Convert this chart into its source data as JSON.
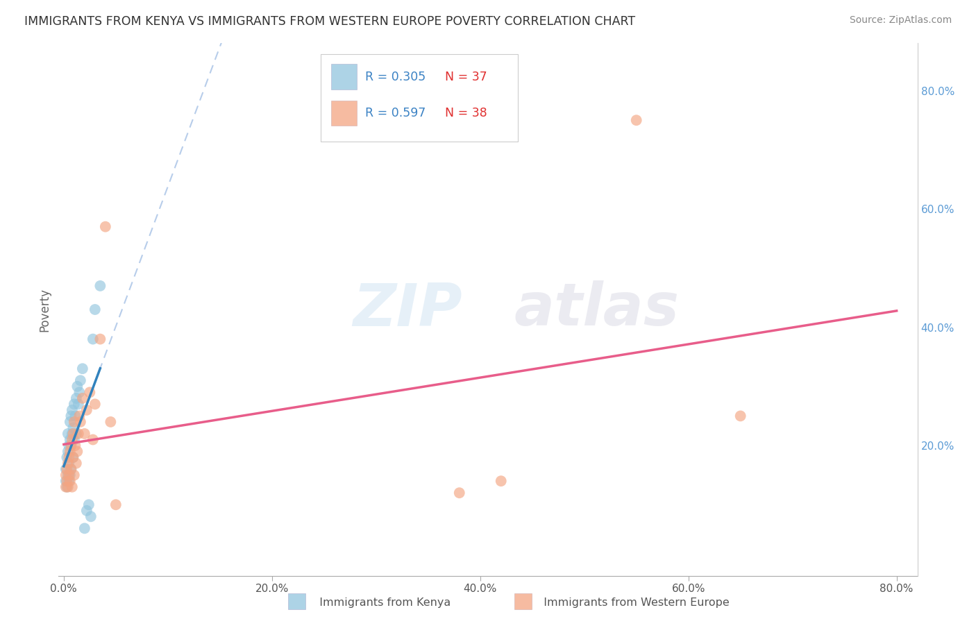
{
  "title": "IMMIGRANTS FROM KENYA VS IMMIGRANTS FROM WESTERN EUROPE POVERTY CORRELATION CHART",
  "source": "Source: ZipAtlas.com",
  "ylabel": "Poverty",
  "xlim": [
    -0.005,
    0.82
  ],
  "ylim": [
    -0.02,
    0.88
  ],
  "xtick_vals": [
    0.0,
    0.2,
    0.4,
    0.6,
    0.8
  ],
  "xtick_labels": [
    "0.0%",
    "20.0%",
    "40.0%",
    "60.0%",
    "80.0%"
  ],
  "ytick_vals": [
    0.2,
    0.4,
    0.6,
    0.8
  ],
  "ytick_labels": [
    "20.0%",
    "40.0%",
    "60.0%",
    "80.0%"
  ],
  "legend_r1": "R = 0.305",
  "legend_n1": "N = 37",
  "legend_r2": "R = 0.597",
  "legend_n2": "N = 38",
  "color_kenya": "#92c5de",
  "color_europe": "#f4a582",
  "trendline_kenya_color": "#3182bd",
  "trendline_europe_color": "#e85d8a",
  "trendline_dashed_color": "#b0c8e8",
  "watermark": "ZIPatlas",
  "kenya_x": [
    0.002,
    0.002,
    0.003,
    0.003,
    0.004,
    0.004,
    0.004,
    0.005,
    0.005,
    0.005,
    0.006,
    0.006,
    0.006,
    0.007,
    0.007,
    0.007,
    0.008,
    0.008,
    0.009,
    0.009,
    0.01,
    0.01,
    0.011,
    0.012,
    0.012,
    0.013,
    0.014,
    0.015,
    0.016,
    0.018,
    0.02,
    0.022,
    0.024,
    0.026,
    0.028,
    0.03,
    0.035
  ],
  "kenya_y": [
    0.14,
    0.16,
    0.13,
    0.18,
    0.15,
    0.19,
    0.22,
    0.14,
    0.17,
    0.2,
    0.15,
    0.21,
    0.24,
    0.16,
    0.2,
    0.25,
    0.22,
    0.26,
    0.18,
    0.23,
    0.21,
    0.27,
    0.25,
    0.22,
    0.28,
    0.3,
    0.27,
    0.29,
    0.31,
    0.33,
    0.06,
    0.09,
    0.1,
    0.08,
    0.38,
    0.43,
    0.47
  ],
  "europe_x": [
    0.002,
    0.002,
    0.003,
    0.003,
    0.004,
    0.004,
    0.005,
    0.005,
    0.006,
    0.006,
    0.007,
    0.007,
    0.008,
    0.008,
    0.009,
    0.009,
    0.01,
    0.01,
    0.011,
    0.012,
    0.013,
    0.014,
    0.015,
    0.016,
    0.018,
    0.02,
    0.022,
    0.025,
    0.028,
    0.03,
    0.035,
    0.04,
    0.045,
    0.05,
    0.38,
    0.42,
    0.55,
    0.65
  ],
  "europe_y": [
    0.13,
    0.15,
    0.14,
    0.16,
    0.13,
    0.17,
    0.15,
    0.18,
    0.14,
    0.19,
    0.16,
    0.2,
    0.13,
    0.21,
    0.18,
    0.22,
    0.15,
    0.24,
    0.2,
    0.17,
    0.19,
    0.22,
    0.25,
    0.24,
    0.28,
    0.22,
    0.26,
    0.29,
    0.21,
    0.27,
    0.38,
    0.57,
    0.24,
    0.1,
    0.12,
    0.14,
    0.75,
    0.25
  ]
}
